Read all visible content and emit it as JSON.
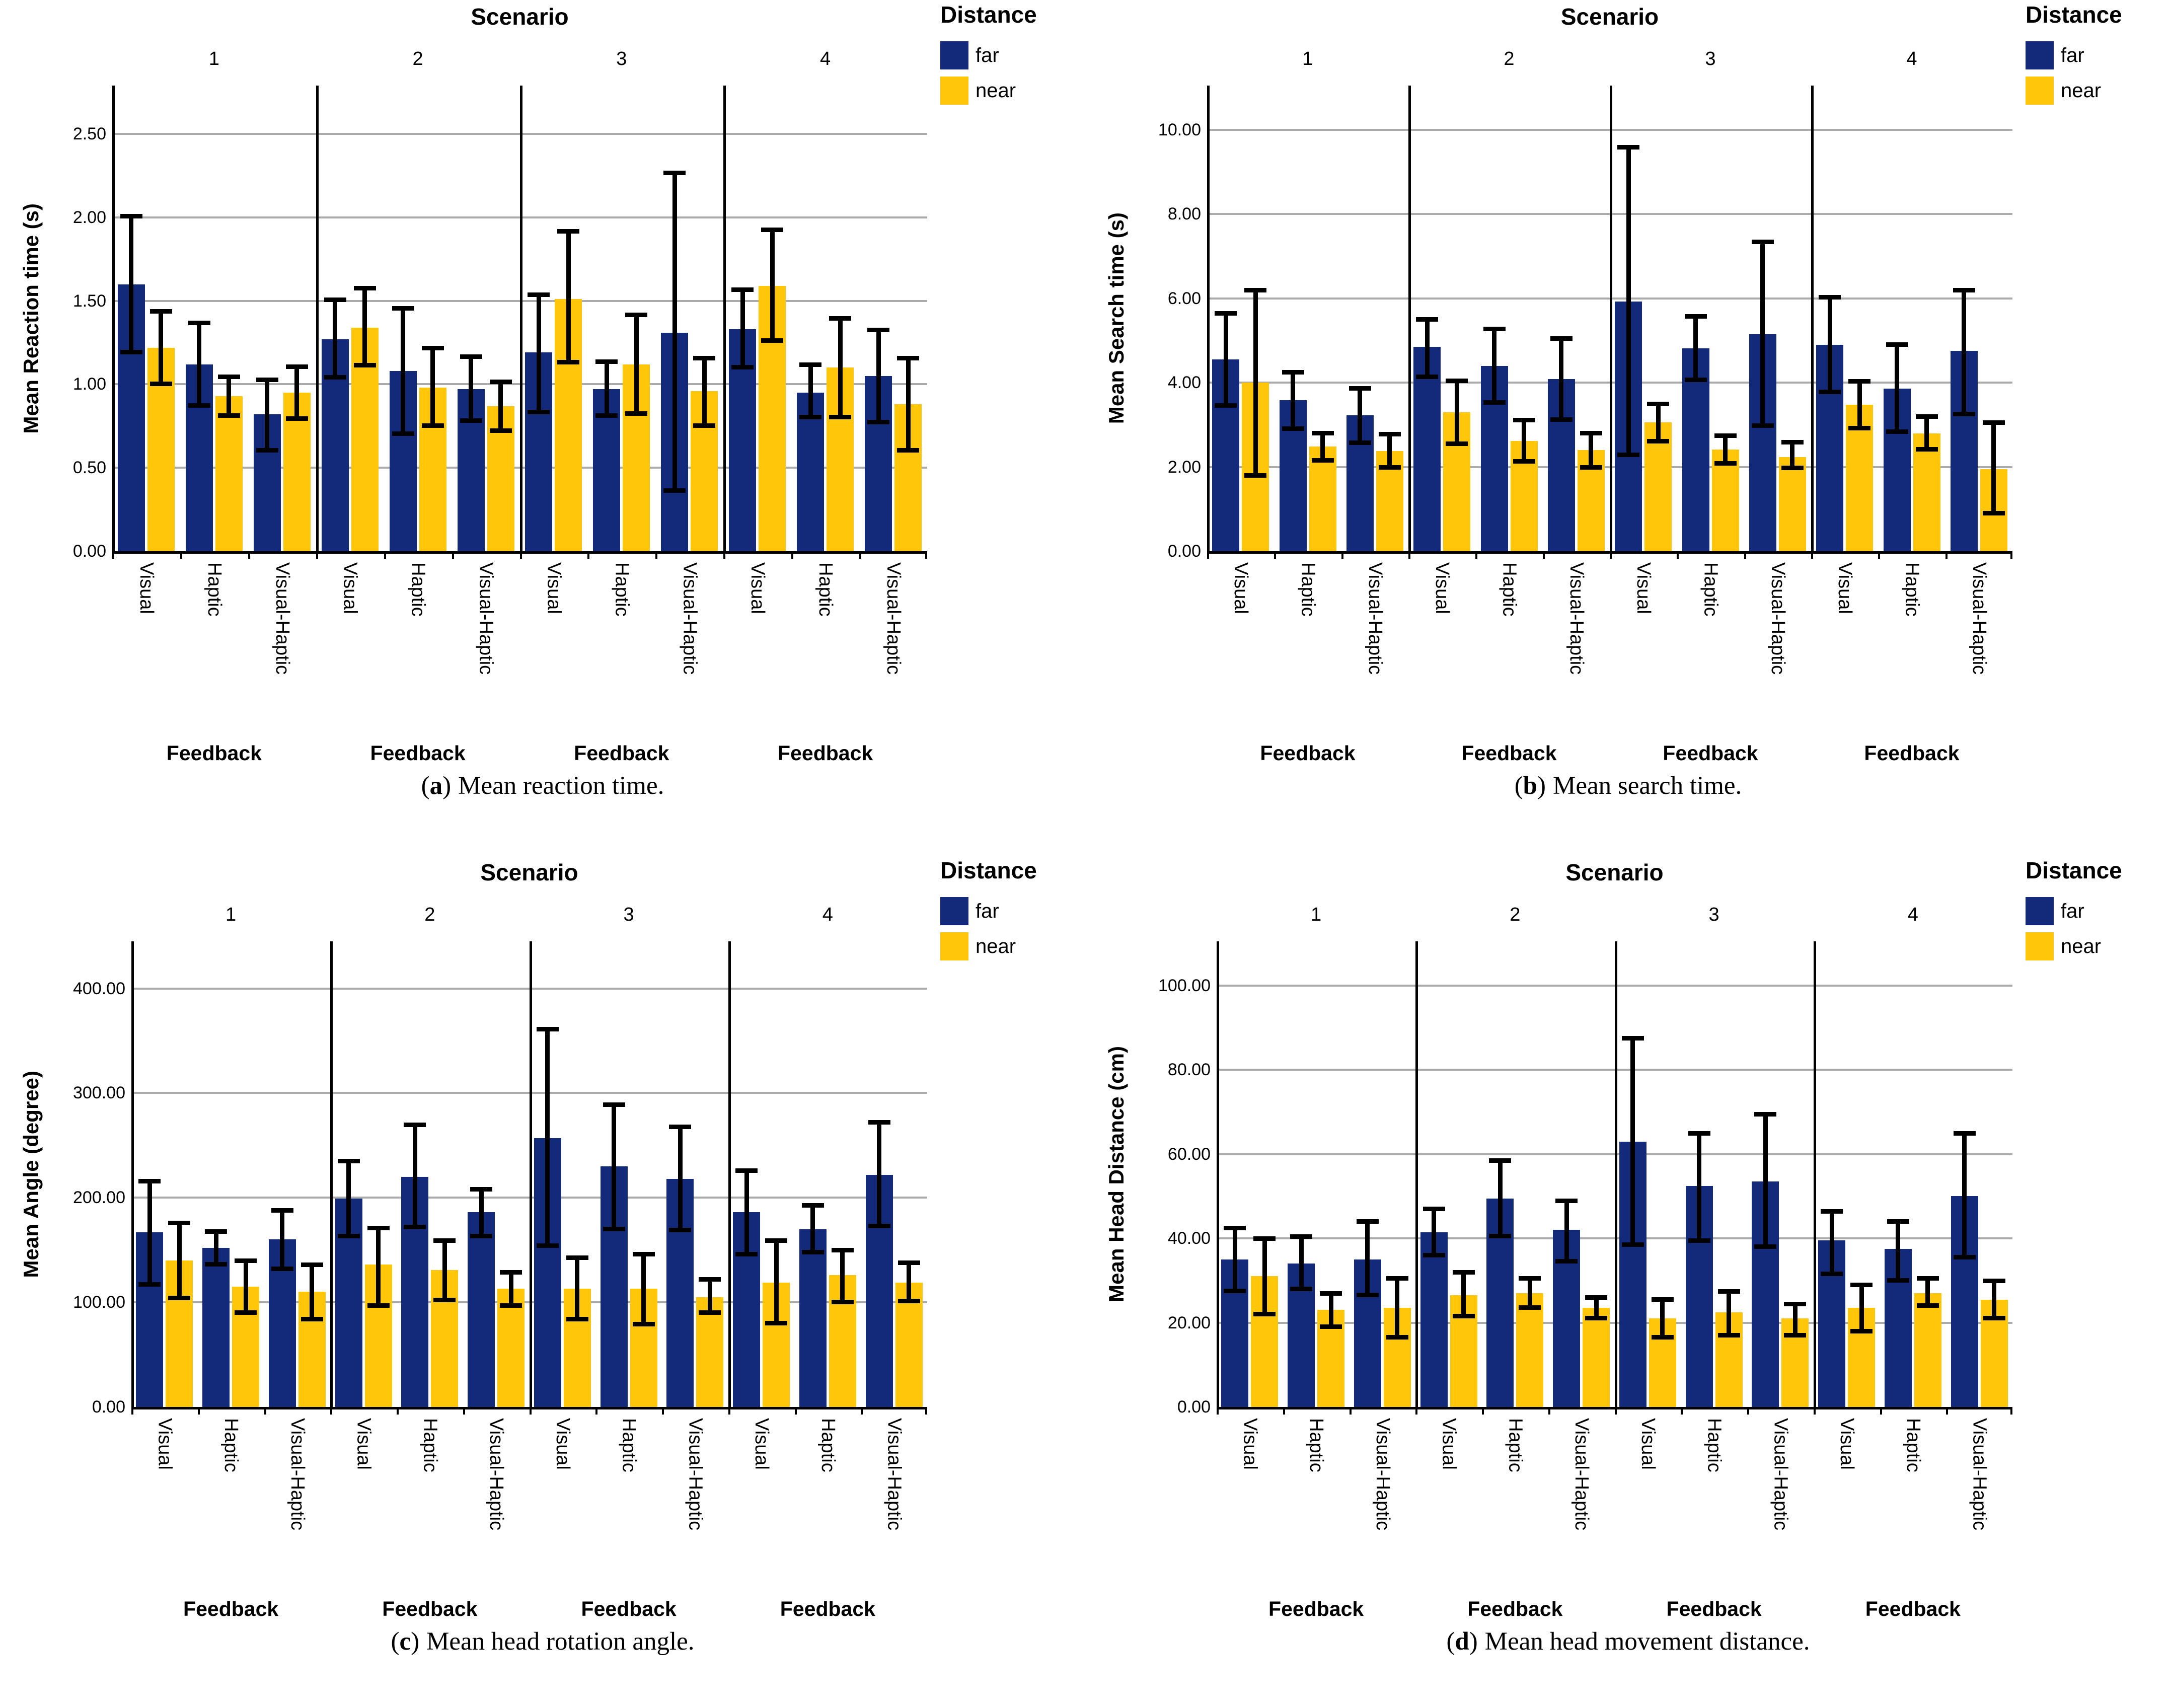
{
  "colors": {
    "far": "#132A7A",
    "near": "#FFC60A",
    "grid": "#ABABAB",
    "axis": "#000000",
    "error": "#000000",
    "background": "#FFFFFF"
  },
  "panels": [
    {
      "letter": "a",
      "caption": "Mean reaction time."
    },
    {
      "letter": "b",
      "caption": "Mean search time."
    },
    {
      "letter": "c",
      "caption": "Mean head rotation angle."
    },
    {
      "letter": "d",
      "caption": "Mean head movement distance."
    }
  ],
  "chart_data": [
    {
      "type": "bar",
      "title": "Scenario",
      "legend_title": "Distance",
      "legend_position": "top-right",
      "grid": true,
      "ylabel": "Mean Reaction time (s)",
      "xlabel": "Feedback",
      "ylim": [
        0,
        2.79
      ],
      "yticks": [
        0,
        0.5,
        1.0,
        1.5,
        2.0,
        2.5
      ],
      "ytick_labels": [
        "0.00",
        "0.50",
        "1.00",
        "1.50",
        "2.00",
        "2.50"
      ],
      "facets": [
        "1",
        "2",
        "3",
        "4"
      ],
      "categories": [
        "Visual",
        "Haptic",
        "Visual-Haptic"
      ],
      "series": [
        {
          "name": "far",
          "color_key": "far",
          "values": [
            [
              1.6,
              1.12,
              0.82
            ],
            [
              1.27,
              1.08,
              0.97
            ],
            [
              1.19,
              0.97,
              1.31
            ],
            [
              1.33,
              0.95,
              1.05
            ]
          ],
          "err_low": [
            [
              1.18,
              0.86,
              0.59
            ],
            [
              1.03,
              0.69,
              0.77
            ],
            [
              0.82,
              0.8,
              0.35
            ],
            [
              1.09,
              0.79,
              0.76
            ]
          ],
          "err_high": [
            [
              2.02,
              1.38,
              1.04
            ],
            [
              1.52,
              1.47,
              1.18
            ],
            [
              1.55,
              1.15,
              2.28
            ],
            [
              1.58,
              1.13,
              1.34
            ]
          ]
        },
        {
          "name": "near",
          "color_key": "near",
          "values": [
            [
              1.22,
              0.93,
              0.95
            ],
            [
              1.34,
              0.98,
              0.87
            ],
            [
              1.51,
              1.12,
              0.96
            ],
            [
              1.59,
              1.1,
              0.88
            ]
          ],
          "err_low": [
            [
              0.99,
              0.8,
              0.78
            ],
            [
              1.1,
              0.74,
              0.71
            ],
            [
              1.12,
              0.81,
              0.74
            ],
            [
              1.25,
              0.79,
              0.59
            ]
          ],
          "err_high": [
            [
              1.45,
              1.06,
              1.12
            ],
            [
              1.59,
              1.23,
              1.03
            ],
            [
              1.93,
              1.43,
              1.17
            ],
            [
              1.94,
              1.41,
              1.17
            ]
          ]
        }
      ]
    },
    {
      "type": "bar",
      "title": "Scenario",
      "legend_title": "Distance",
      "legend_position": "top-right",
      "grid": true,
      "ylabel": "Mean Search time (s)",
      "xlabel": "Feedback",
      "ylim": [
        0,
        11.05
      ],
      "yticks": [
        0,
        2,
        4,
        6,
        8,
        10
      ],
      "ytick_labels": [
        "0.00",
        "2.00",
        "4.00",
        "6.00",
        "8.00",
        "10.00"
      ],
      "facets": [
        "1",
        "2",
        "3",
        "4"
      ],
      "categories": [
        "Visual",
        "Haptic",
        "Visual-Haptic"
      ],
      "series": [
        {
          "name": "far",
          "color_key": "far",
          "values": [
            [
              4.55,
              3.58,
              3.22
            ],
            [
              4.85,
              4.4,
              4.08
            ],
            [
              5.93,
              4.81,
              5.15
            ],
            [
              4.9,
              3.86,
              4.75
            ]
          ],
          "err_low": [
            [
              3.4,
              2.85,
              2.52
            ],
            [
              4.08,
              3.48,
              3.07
            ],
            [
              2.23,
              4.01,
              2.93
            ],
            [
              3.73,
              2.78,
              3.2
            ]
          ],
          "err_high": [
            [
              5.7,
              4.3,
              3.92
            ],
            [
              5.55,
              5.33,
              5.1
            ],
            [
              9.64,
              5.63,
              7.39
            ],
            [
              6.08,
              4.96,
              6.25
            ]
          ]
        },
        {
          "name": "near",
          "color_key": "near",
          "values": [
            [
              4.0,
              2.48,
              2.38
            ],
            [
              3.3,
              2.62,
              2.4
            ],
            [
              3.06,
              2.41,
              2.23
            ],
            [
              3.48,
              2.79,
              1.95
            ]
          ],
          "err_low": [
            [
              1.75,
              2.1,
              1.93
            ],
            [
              2.5,
              2.08,
              1.93
            ],
            [
              2.56,
              2.03,
              1.92
            ],
            [
              2.87,
              2.36,
              0.85
            ]
          ],
          "err_high": [
            [
              6.25,
              2.85,
              2.83
            ],
            [
              4.1,
              3.17,
              2.85
            ],
            [
              3.55,
              2.79,
              2.64
            ],
            [
              4.08,
              3.25,
              3.1
            ]
          ]
        }
      ]
    },
    {
      "type": "bar",
      "title": "Scenario",
      "legend_title": "Distance",
      "legend_position": "top-right",
      "grid": true,
      "ylabel": "Mean Angle (degree)",
      "xlabel": "Feedback",
      "ylim": [
        0,
        445
      ],
      "yticks": [
        0,
        100,
        200,
        300,
        400
      ],
      "ytick_labels": [
        "0.00",
        "100.00",
        "200.00",
        "300.00",
        "400.00"
      ],
      "facets": [
        "1",
        "2",
        "3",
        "4"
      ],
      "categories": [
        "Visual",
        "Haptic",
        "Visual-Haptic"
      ],
      "series": [
        {
          "name": "far",
          "color_key": "far",
          "values": [
            [
              167,
              152,
              160
            ],
            [
              199,
              220,
              186
            ],
            [
              257,
              230,
              218
            ],
            [
              186,
              170,
              222
            ]
          ],
          "err_low": [
            [
              115,
              134,
              130
            ],
            [
              161,
              170,
              161
            ],
            [
              152,
              168,
              167
            ],
            [
              144,
              146,
              171
            ]
          ],
          "err_high": [
            [
              218,
              170,
              190
            ],
            [
              237,
              272,
              210
            ],
            [
              363,
              291,
              270
            ],
            [
              228,
              195,
              274
            ]
          ]
        },
        {
          "name": "near",
          "color_key": "near",
          "values": [
            [
              140,
              115,
              110
            ],
            [
              136,
              131,
              113
            ],
            [
              113,
              113,
              105
            ],
            [
              119,
              126,
              119
            ]
          ],
          "err_low": [
            [
              102,
              88,
              82
            ],
            [
              95,
              100,
              95
            ],
            [
              82,
              77,
              88
            ],
            [
              78,
              98,
              99
            ]
          ],
          "err_high": [
            [
              178,
              142,
              138
            ],
            [
              173,
              161,
              131
            ],
            [
              145,
              148,
              124
            ],
            [
              161,
              152,
              140
            ]
          ]
        }
      ]
    },
    {
      "type": "bar",
      "title": "Scenario",
      "legend_title": "Distance",
      "legend_position": "top-right",
      "grid": true,
      "ylabel": "Mean Head Distance (cm)",
      "xlabel": "Feedback",
      "ylim": [
        0,
        110.5
      ],
      "yticks": [
        0,
        20,
        40,
        60,
        80,
        100
      ],
      "ytick_labels": [
        "0.00",
        "20.00",
        "40.00",
        "60.00",
        "80.00",
        "100.00"
      ],
      "facets": [
        "1",
        "2",
        "3",
        "4"
      ],
      "categories": [
        "Visual",
        "Haptic",
        "Visual-Haptic"
      ],
      "series": [
        {
          "name": "far",
          "color_key": "far",
          "values": [
            [
              35.0,
              34.0,
              35.0
            ],
            [
              41.5,
              49.5,
              42.0
            ],
            [
              63.0,
              52.5,
              53.5
            ],
            [
              39.5,
              37.5,
              50.0
            ]
          ],
          "err_low": [
            [
              27.0,
              27.5,
              26.0
            ],
            [
              35.5,
              40.0,
              34.0
            ],
            [
              38.0,
              39.0,
              37.5
            ],
            [
              31.0,
              29.5,
              35.0
            ]
          ],
          "err_high": [
            [
              43.0,
              41.0,
              44.5
            ],
            [
              47.5,
              59.0,
              49.5
            ],
            [
              88.0,
              65.5,
              70.0
            ],
            [
              47.0,
              44.5,
              65.5
            ]
          ]
        },
        {
          "name": "near",
          "color_key": "near",
          "values": [
            [
              31.0,
              23.0,
              23.5
            ],
            [
              26.5,
              27.0,
              23.5
            ],
            [
              21.0,
              22.5,
              21.0
            ],
            [
              23.5,
              27.0,
              25.5
            ]
          ],
          "err_low": [
            [
              21.5,
              18.5,
              16.0
            ],
            [
              21.0,
              23.0,
              20.5
            ],
            [
              16.0,
              16.5,
              16.5
            ],
            [
              17.5,
              23.5,
              20.5
            ]
          ],
          "err_high": [
            [
              40.5,
              27.5,
              31.0
            ],
            [
              32.5,
              31.0,
              26.5
            ],
            [
              26.0,
              28.0,
              25.0
            ],
            [
              29.5,
              31.0,
              30.5
            ]
          ]
        }
      ]
    }
  ]
}
